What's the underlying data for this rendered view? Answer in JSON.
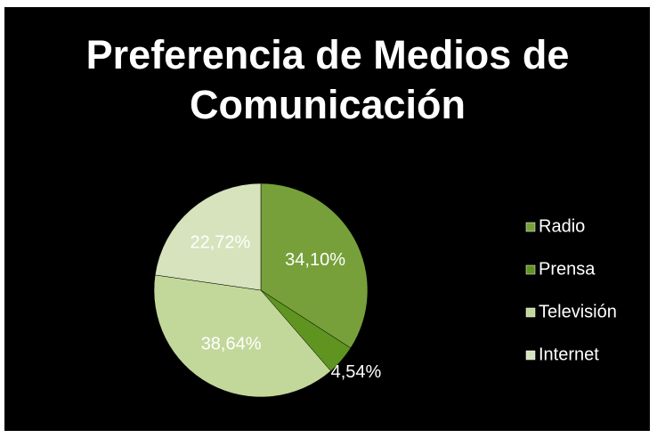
{
  "chart_data": {
    "type": "pie",
    "title": "Preferencia de Medios de Comunicación",
    "categories": [
      "Radio",
      "Prensa",
      "Televisión",
      "Internet"
    ],
    "values": [
      34.1,
      4.54,
      38.64,
      22.72
    ],
    "value_labels": [
      "34,10%",
      "4,54%",
      "38,64%",
      "22,72%"
    ],
    "colors": [
      "#77a03a",
      "#5f9420",
      "#c2d89a",
      "#d6e3bd"
    ],
    "legend": "right"
  }
}
